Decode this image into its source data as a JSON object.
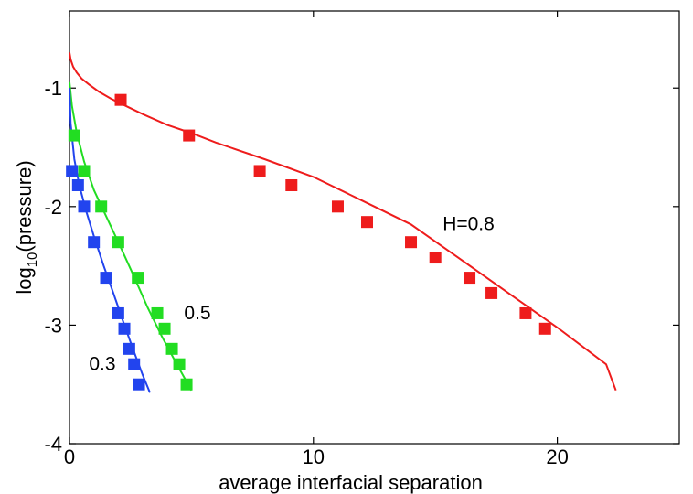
{
  "chart_data": {
    "type": "scatter",
    "title": "",
    "xlabel": "average interfacial separation",
    "ylabel_main": "log",
    "ylabel_sub": "10",
    "ylabel_rest": "(pressure)",
    "xlim": [
      0,
      25
    ],
    "ylim": [
      -4,
      -0.35
    ],
    "x_ticks": [
      0,
      10,
      20
    ],
    "x_tick_labels": [
      "0",
      "10",
      "20"
    ],
    "y_ticks": [
      -4,
      -3,
      -2,
      -1
    ],
    "y_tick_labels": [
      "-4",
      "-3",
      "-2",
      "-1"
    ],
    "grid": false,
    "annotations": [
      {
        "text": "H=0.8",
        "x": 15.3,
        "y": -2.2
      },
      {
        "text": "0.5",
        "x": 4.7,
        "y": -2.95
      },
      {
        "text": "0.3",
        "x": 0.8,
        "y": -3.38
      }
    ],
    "series": [
      {
        "color": "#ee1c1c",
        "marker_x": [
          2.1,
          4.9,
          7.8,
          9.1,
          11.0,
          12.2,
          14.0,
          15.0,
          16.4,
          17.3,
          18.7,
          19.5
        ],
        "marker_y": [
          -1.1,
          -1.4,
          -1.7,
          -1.82,
          -2.0,
          -2.13,
          -2.3,
          -2.43,
          -2.6,
          -2.73,
          -2.9,
          -3.03
        ],
        "line_x": [
          0.0,
          0.05,
          0.15,
          0.3,
          0.5,
          0.8,
          1.2,
          1.7,
          2.3,
          3.0,
          4.0,
          5.0,
          6.0,
          8.0,
          10.0,
          12.0,
          14.0,
          16.0,
          18.0,
          20.0,
          22.0,
          22.4
        ],
        "line_y": [
          -0.7,
          -0.76,
          -0.82,
          -0.87,
          -0.92,
          -0.97,
          -1.03,
          -1.09,
          -1.15,
          -1.22,
          -1.31,
          -1.38,
          -1.46,
          -1.6,
          -1.75,
          -1.95,
          -2.15,
          -2.44,
          -2.73,
          -3.02,
          -3.33,
          -3.55
        ]
      },
      {
        "color": "#22dd22",
        "marker_x": [
          0.2,
          0.6,
          1.3,
          2.0,
          2.8,
          3.6,
          3.9,
          4.2,
          4.5,
          4.8
        ],
        "marker_y": [
          -1.4,
          -1.7,
          -2.0,
          -2.3,
          -2.6,
          -2.9,
          -3.03,
          -3.2,
          -3.33,
          -3.5
        ],
        "line_x": [
          0.0,
          0.1,
          0.3,
          0.6,
          1.0,
          1.5,
          2.0,
          2.6,
          3.2,
          3.8,
          4.4,
          5.0
        ],
        "line_y": [
          -0.95,
          -1.15,
          -1.38,
          -1.62,
          -1.86,
          -2.08,
          -2.3,
          -2.57,
          -2.85,
          -3.1,
          -3.33,
          -3.55
        ]
      },
      {
        "color": "#2244ee",
        "marker_x": [
          0.1,
          0.35,
          0.6,
          1.0,
          1.5,
          2.0,
          2.25,
          2.45,
          2.65,
          2.85
        ],
        "marker_y": [
          -1.7,
          -1.82,
          -2.0,
          -2.3,
          -2.6,
          -2.9,
          -3.03,
          -3.2,
          -3.33,
          -3.5
        ],
        "line_x": [
          0.0,
          0.05,
          0.2,
          0.4,
          0.7,
          1.0,
          1.4,
          1.8,
          2.2,
          2.6,
          3.0,
          3.3
        ],
        "line_y": [
          -1.0,
          -1.3,
          -1.6,
          -1.82,
          -2.05,
          -2.25,
          -2.5,
          -2.73,
          -2.97,
          -3.2,
          -3.42,
          -3.57
        ]
      }
    ]
  }
}
